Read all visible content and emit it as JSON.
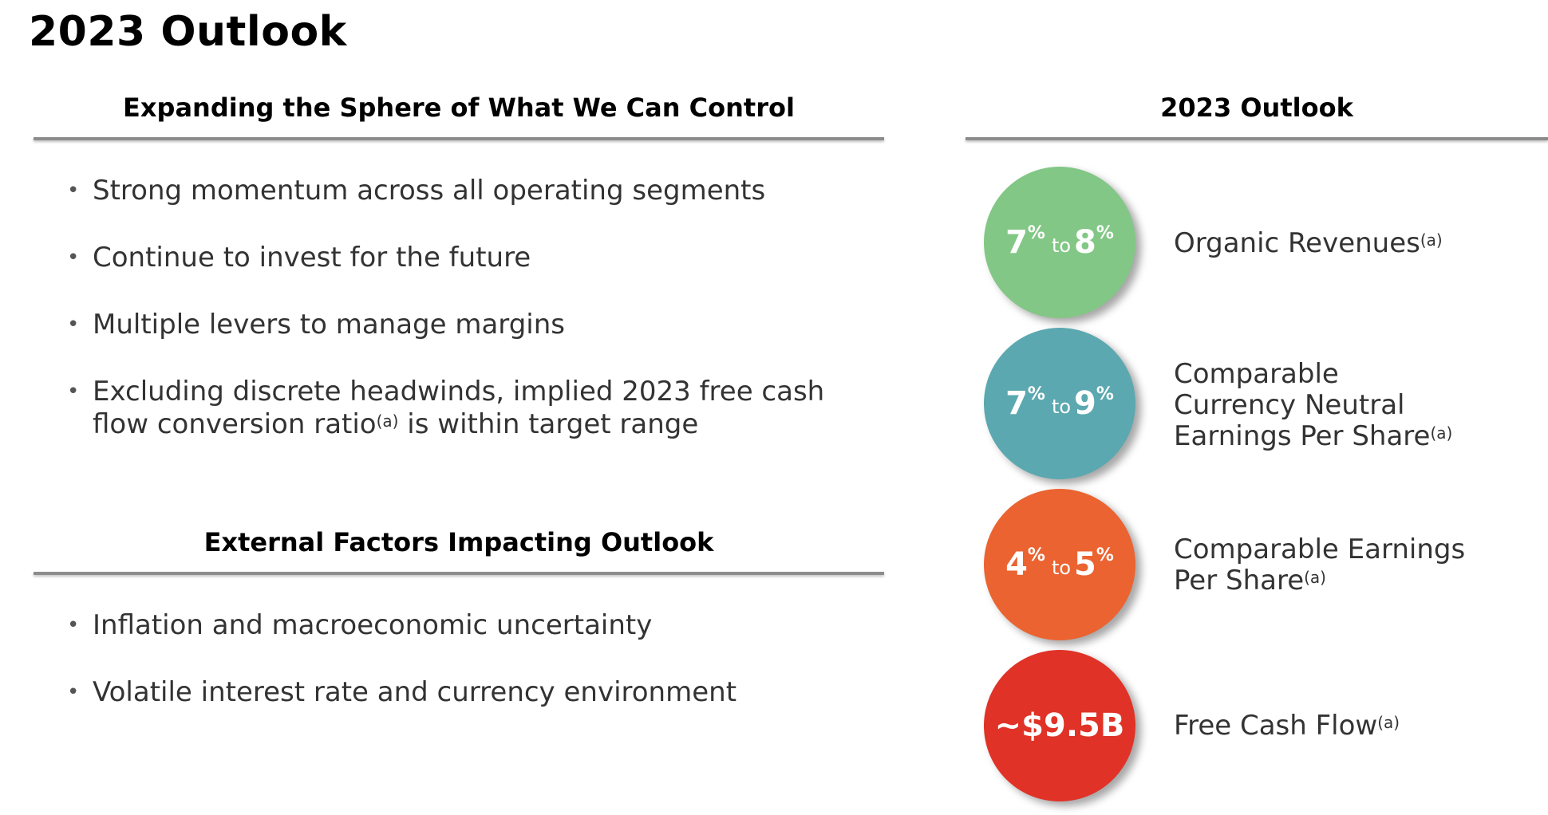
{
  "page_title": "2023 Outlook",
  "left": {
    "section1": {
      "heading": "Expanding the Sphere of What We Can Control",
      "bullets": [
        {
          "text": "Strong momentum across all operating segments"
        },
        {
          "text": "Continue to invest for the future"
        },
        {
          "text": "Multiple levers to manage margins"
        },
        {
          "text_before": "Excluding discrete headwinds, implied 2023 free cash flow conversion ratio",
          "note": "(a)",
          "text_after": " is within target range"
        }
      ]
    },
    "section2": {
      "heading": "External Factors Impacting Outlook",
      "bullets": [
        {
          "text": "Inflation and macroeconomic uncertainty"
        },
        {
          "text": "Volatile interest rate and currency environment"
        }
      ]
    }
  },
  "right": {
    "heading": "2023 Outlook",
    "metrics": [
      {
        "low": "7",
        "high": "8",
        "pct": "%",
        "to": "to",
        "label": "Organic Revenues",
        "note": "(a)",
        "color": "#82c785"
      },
      {
        "low": "7",
        "high": "9",
        "pct": "%",
        "to": "to",
        "label_lines": [
          "Comparable",
          "Currency Neutral",
          "Earnings Per Share"
        ],
        "note": "(a)",
        "color": "#5ba8b0"
      },
      {
        "low": "4",
        "high": "5",
        "pct": "%",
        "to": "to",
        "label_lines": [
          "Comparable Earnings",
          "Per Share"
        ],
        "note": "(a)",
        "color": "#eb6330"
      },
      {
        "value": "~$9.5B",
        "label": "Free Cash Flow",
        "note": "(a)",
        "color": "#e03226"
      }
    ]
  }
}
